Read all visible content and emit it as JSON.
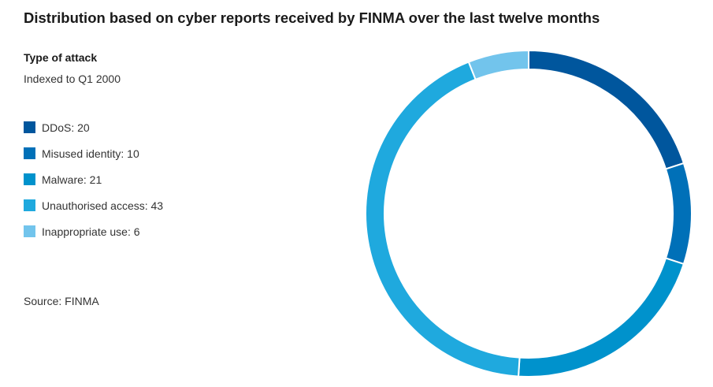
{
  "title": "Distribution based on cyber reports received by FINMA over the last twelve months",
  "legend_heading": "Type of attack",
  "legend_subheading": "Indexed to Q1 2000",
  "source": "Source: FINMA",
  "chart_data": {
    "type": "pie",
    "variant": "donut",
    "title": "Distribution based on cyber reports received by FINMA over the last twelve months",
    "legend_title": "Type of attack",
    "legend_subtitle": "Indexed to Q1 2000",
    "legend_placement": "left",
    "start_angle": "12 o'clock",
    "direction": "clockwise",
    "slices": [
      {
        "label": "DDoS",
        "value": 20,
        "legend_text": "DDoS: 20",
        "color": "#00569d"
      },
      {
        "label": "Misused identity",
        "value": 10,
        "legend_text": "Misused identity: 10",
        "color": "#0070b8"
      },
      {
        "label": "Malware",
        "value": 21,
        "legend_text": "Malware: 21",
        "color": "#0092cc"
      },
      {
        "label": "Unauthorised access",
        "value": 43,
        "legend_text": "Unauthorised access: 43",
        "color": "#1fa9de"
      },
      {
        "label": "Inappropriate use",
        "value": 6,
        "legend_text": "Inappropriate use: 6",
        "color": "#72c4ec"
      }
    ]
  }
}
